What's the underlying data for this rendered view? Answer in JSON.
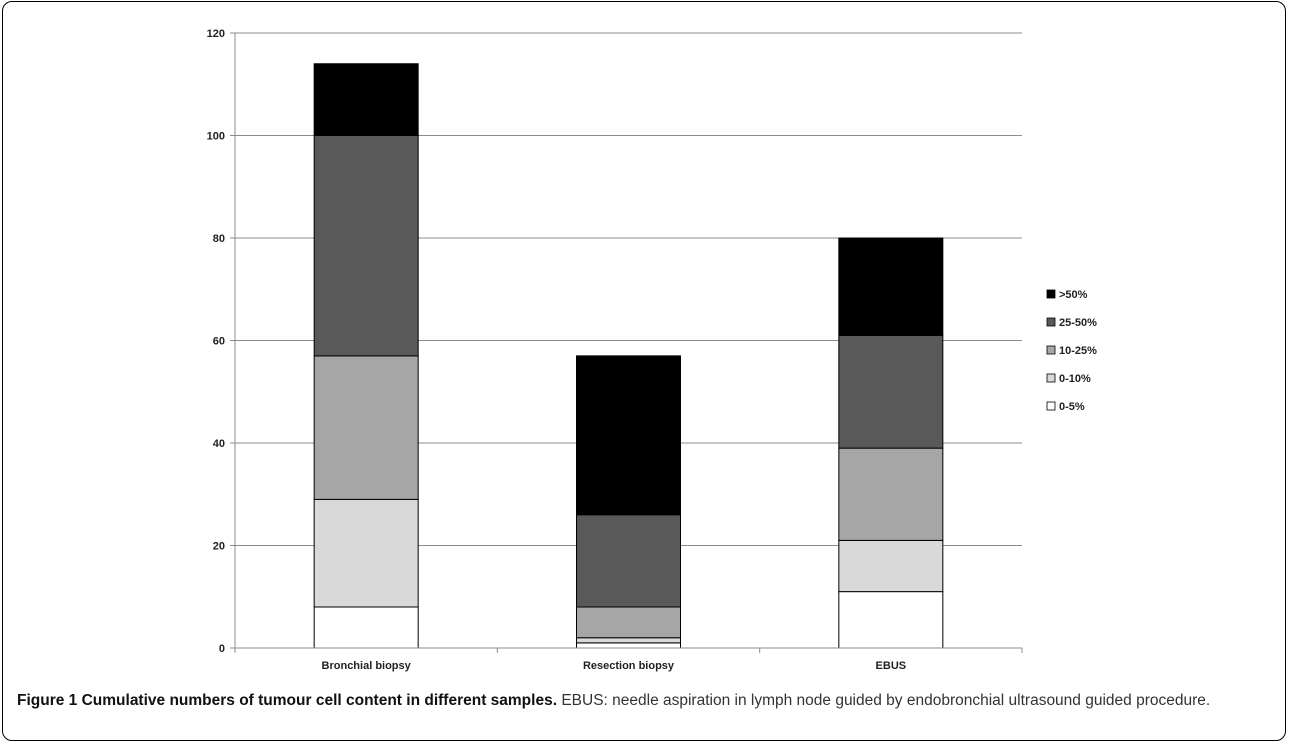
{
  "chart_data": {
    "type": "bar",
    "stacked": true,
    "categories": [
      "Bronchial biopsy",
      "Resection biopsy",
      "EBUS"
    ],
    "series": [
      {
        "name": "0-5%",
        "values": [
          8,
          1,
          11
        ],
        "color": "#ffffff"
      },
      {
        "name": "0-10%",
        "values": [
          21,
          1,
          10
        ],
        "color": "#d9d9d9"
      },
      {
        "name": "10-25%",
        "values": [
          28,
          6,
          18
        ],
        "color": "#a6a6a6"
      },
      {
        "name": "25-50%",
        "values": [
          43,
          18,
          22
        ],
        "color": "#595959"
      },
      {
        "name": ">50%",
        "values": [
          14,
          31,
          19
        ],
        "color": "#000000"
      }
    ],
    "ylim": [
      0,
      120
    ],
    "yticks": [
      "0",
      "20",
      "40",
      "60",
      "80",
      "100",
      "120"
    ],
    "grid": true,
    "legend_position": "right"
  },
  "caption": {
    "title": "Figure 1 Cumulative numbers of tumour cell content in different samples.",
    "text": " EBUS: needle aspiration in lymph node guided by endobronchial ultrasound guided procedure."
  }
}
